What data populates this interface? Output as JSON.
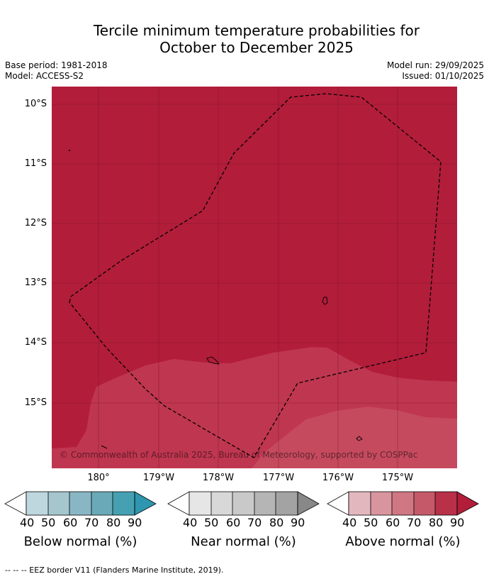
{
  "title_line1": "Tercile minimum temperature probabilities for",
  "title_line2": "October to December 2025",
  "base_period": "Base period: 1981-2018",
  "model": "Model: ACCESS-S2",
  "model_run": "Model run: 29/09/2025",
  "issued": "Issued: 01/10/2025",
  "lat_labels": [
    "10°S",
    "11°S",
    "12°S",
    "13°S",
    "14°S",
    "15°S"
  ],
  "lon_labels": [
    "180°",
    "179°W",
    "178°W",
    "177°W",
    "176°W",
    "175°W"
  ],
  "copyright": "© Commonwealth of Australia 2025, Bureau of Meteorology, supported by COSPPac",
  "colors": {
    "above_90": "#b21d3a",
    "above_80": "#bf3650",
    "above_70": "#c54a5e",
    "below_ramp": [
      "#bed6de",
      "#a6c6ce",
      "#88b6c4",
      "#6aaab8",
      "#45a1b2",
      "#2e96ae"
    ],
    "near_ramp": [
      "#e6e6e6",
      "#d8d8d8",
      "#c9c9c9",
      "#b5b5b5",
      "#a3a3a3",
      "#888888"
    ],
    "above_ramp": [
      "#e2b8be",
      "#d9959e",
      "#cf7782",
      "#c5596a",
      "#b93049",
      "#b21d3a"
    ]
  },
  "colorbars": [
    {
      "title": "Below normal (%)",
      "ticks": [
        "40",
        "50",
        "60",
        "70",
        "80",
        "90"
      ]
    },
    {
      "title": "Near normal (%)",
      "ticks": [
        "40",
        "50",
        "60",
        "70",
        "80",
        "90"
      ]
    },
    {
      "title": "Above normal (%)",
      "ticks": [
        "40",
        "50",
        "60",
        "70",
        "80",
        "90"
      ]
    }
  ],
  "footnote": "-- -- -- EEZ border V11 (Flanders Marine Institute, 2019)."
}
